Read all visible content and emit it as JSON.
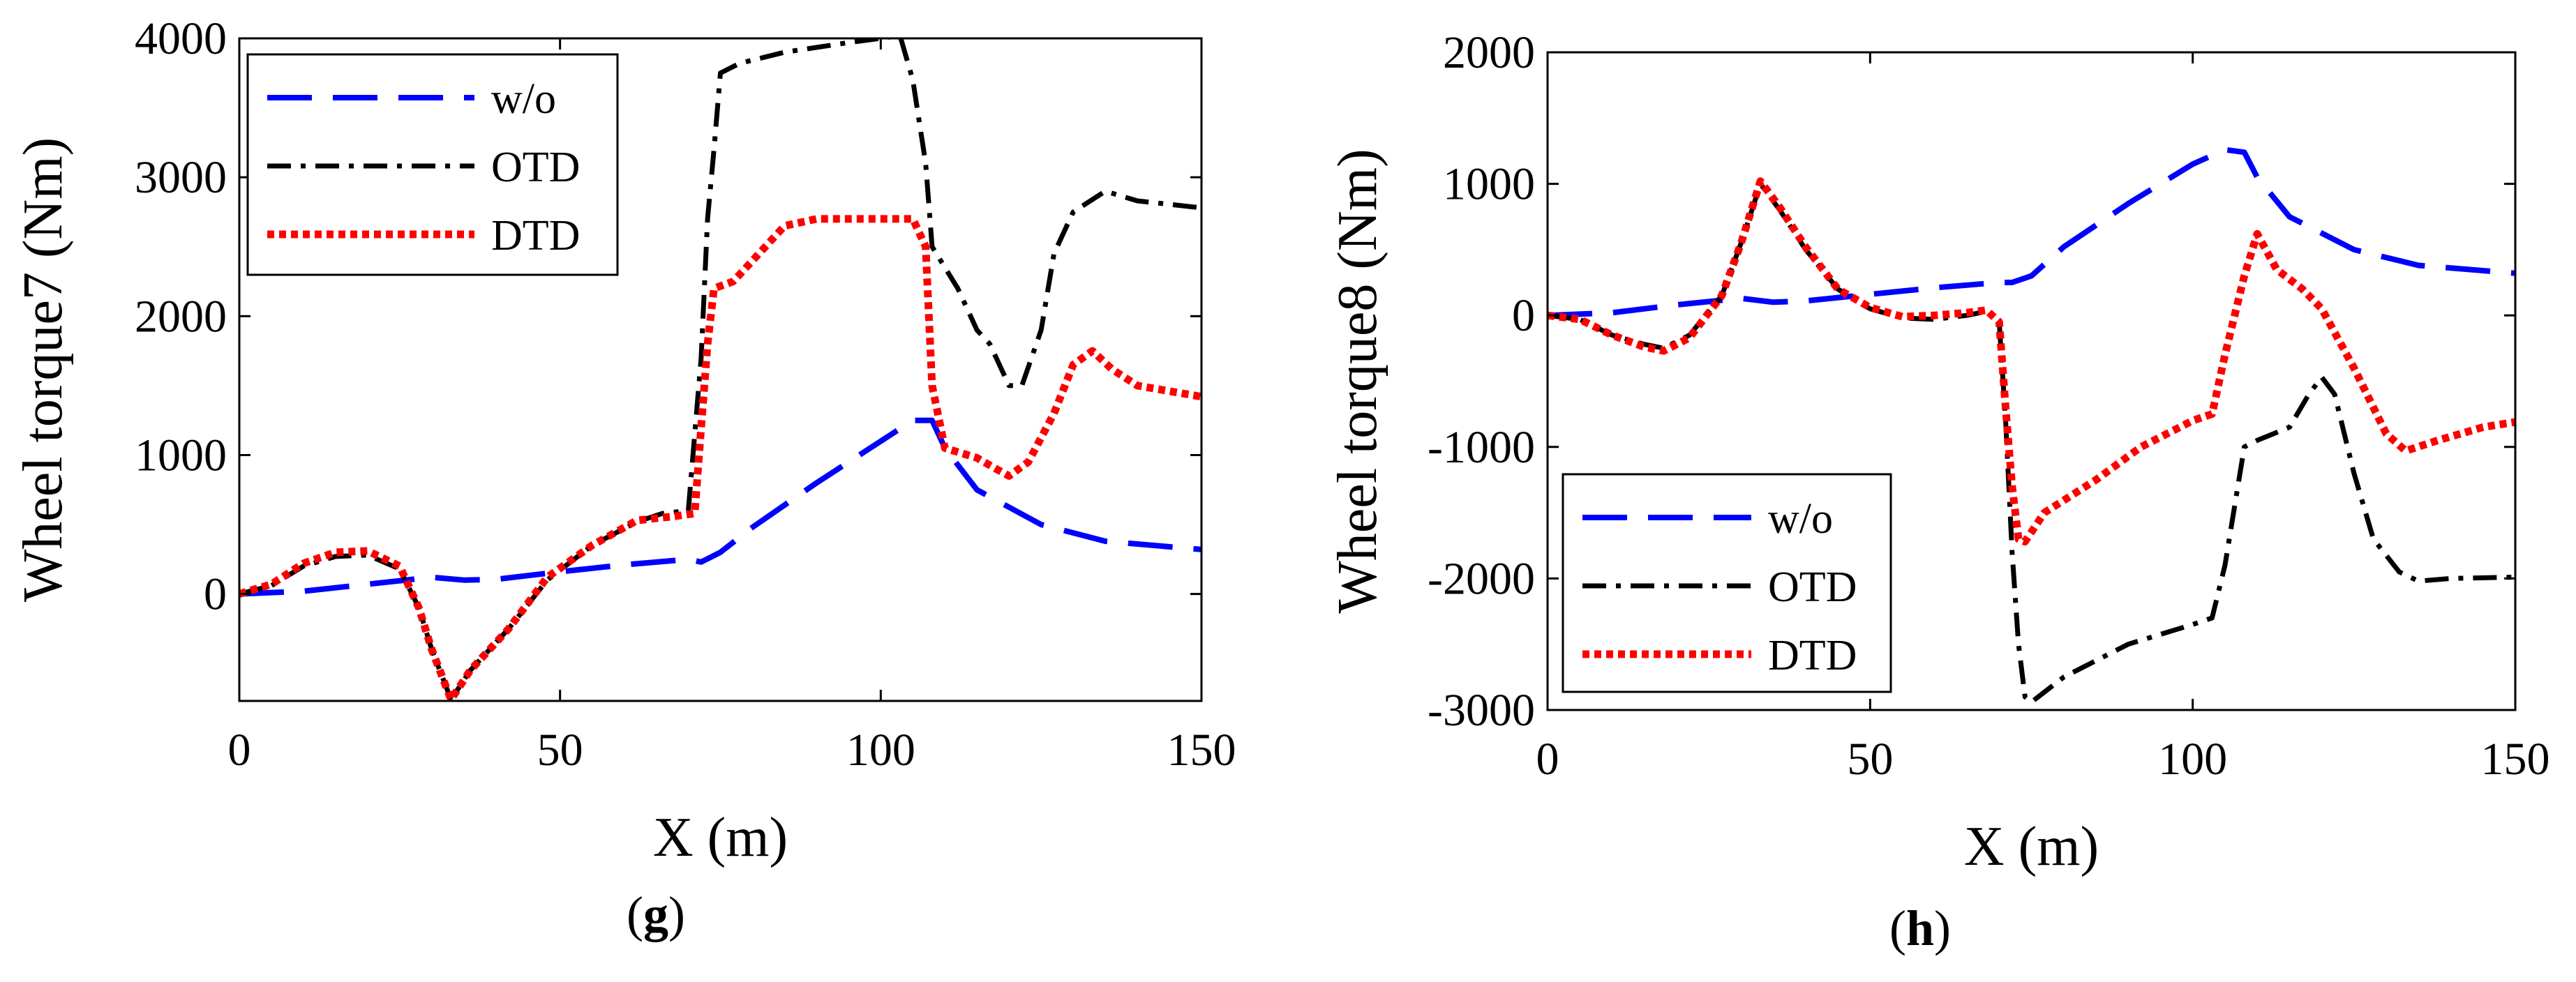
{
  "chart_data": [
    {
      "panel_label": "g",
      "type": "line",
      "xlabel": "X (m)",
      "ylabel": "Wheel torque7 (Nm)",
      "xlim": [
        0,
        150
      ],
      "ylim": [
        -770,
        4000
      ],
      "xticks": [
        0,
        50,
        100,
        150
      ],
      "yticks": [
        0,
        1000,
        2000,
        3000,
        4000
      ],
      "legend_position": "top-left",
      "series": [
        {
          "name": "w/o",
          "color": "#0000ff",
          "style": "dashed",
          "points": [
            [
              0,
              0
            ],
            [
              10,
              20
            ],
            [
              20,
              70
            ],
            [
              30,
              120
            ],
            [
              35,
              100
            ],
            [
              40,
              105
            ],
            [
              50,
              160
            ],
            [
              60,
              210
            ],
            [
              70,
              250
            ],
            [
              72,
              230
            ],
            [
              75,
              300
            ],
            [
              80,
              480
            ],
            [
              90,
              800
            ],
            [
              100,
              1100
            ],
            [
              105,
              1250
            ],
            [
              108,
              1250
            ],
            [
              110,
              1050
            ],
            [
              115,
              750
            ],
            [
              125,
              500
            ],
            [
              135,
              380
            ],
            [
              150,
              320
            ]
          ]
        },
        {
          "name": "OTD",
          "color": "#000000",
          "style": "dashdot",
          "points": [
            [
              0,
              0
            ],
            [
              5,
              60
            ],
            [
              10,
              200
            ],
            [
              15,
              270
            ],
            [
              20,
              280
            ],
            [
              25,
              180
            ],
            [
              28,
              -100
            ],
            [
              30,
              -400
            ],
            [
              33,
              -760
            ],
            [
              36,
              -550
            ],
            [
              42,
              -250
            ],
            [
              48,
              100
            ],
            [
              55,
              350
            ],
            [
              62,
              520
            ],
            [
              66,
              580
            ],
            [
              70,
              600
            ],
            [
              72,
              1700
            ],
            [
              73,
              2700
            ],
            [
              74,
              3200
            ],
            [
              75,
              3750
            ],
            [
              78,
              3820
            ],
            [
              85,
              3900
            ],
            [
              95,
              3970
            ],
            [
              100,
              4000
            ],
            [
              103,
              4020
            ],
            [
              105,
              3700
            ],
            [
              107,
              3100
            ],
            [
              108,
              2500
            ],
            [
              112,
              2200
            ],
            [
              115,
              1900
            ],
            [
              117,
              1800
            ],
            [
              120,
              1500
            ],
            [
              122,
              1500
            ],
            [
              125,
              1900
            ],
            [
              127,
              2450
            ],
            [
              130,
              2750
            ],
            [
              135,
              2900
            ],
            [
              140,
              2830
            ],
            [
              150,
              2780
            ]
          ]
        },
        {
          "name": "DTD",
          "color": "#ff0000",
          "style": "dotted",
          "points": [
            [
              0,
              0
            ],
            [
              5,
              70
            ],
            [
              10,
              220
            ],
            [
              15,
              300
            ],
            [
              20,
              310
            ],
            [
              25,
              200
            ],
            [
              28,
              -100
            ],
            [
              30,
              -400
            ],
            [
              33,
              -760
            ],
            [
              36,
              -550
            ],
            [
              42,
              -250
            ],
            [
              48,
              120
            ],
            [
              55,
              350
            ],
            [
              62,
              530
            ],
            [
              68,
              560
            ],
            [
              71,
              580
            ],
            [
              72,
              1200
            ],
            [
              73,
              1800
            ],
            [
              74,
              2200
            ],
            [
              77,
              2250
            ],
            [
              80,
              2400
            ],
            [
              85,
              2650
            ],
            [
              90,
              2700
            ],
            [
              105,
              2700
            ],
            [
              107,
              2500
            ],
            [
              108,
              1500
            ],
            [
              110,
              1050
            ],
            [
              115,
              980
            ],
            [
              118,
              900
            ],
            [
              120,
              850
            ],
            [
              123,
              950
            ],
            [
              127,
              1300
            ],
            [
              130,
              1650
            ],
            [
              133,
              1750
            ],
            [
              136,
              1620
            ],
            [
              140,
              1500
            ],
            [
              150,
              1420
            ]
          ]
        }
      ]
    },
    {
      "panel_label": "h",
      "type": "line",
      "xlabel": "X (m)",
      "ylabel": "Wheel torque8 (Nm)",
      "xlim": [
        0,
        150
      ],
      "ylim": [
        -3000,
        2000
      ],
      "xticks": [
        0,
        50,
        100,
        150
      ],
      "yticks": [
        -3000,
        -2000,
        -1000,
        0,
        1000,
        2000
      ],
      "legend_position": "bottom-left",
      "series": [
        {
          "name": "w/o",
          "color": "#0000ff",
          "style": "dashed",
          "points": [
            [
              0,
              0
            ],
            [
              10,
              20
            ],
            [
              20,
              80
            ],
            [
              30,
              130
            ],
            [
              35,
              100
            ],
            [
              40,
              110
            ],
            [
              50,
              160
            ],
            [
              60,
              210
            ],
            [
              70,
              250
            ],
            [
              72,
              250
            ],
            [
              75,
              300
            ],
            [
              80,
              520
            ],
            [
              90,
              850
            ],
            [
              100,
              1150
            ],
            [
              105,
              1260
            ],
            [
              108,
              1240
            ],
            [
              110,
              1050
            ],
            [
              115,
              750
            ],
            [
              125,
              500
            ],
            [
              135,
              380
            ],
            [
              150,
              320
            ]
          ]
        },
        {
          "name": "OTD",
          "color": "#000000",
          "style": "dashdot",
          "points": [
            [
              0,
              0
            ],
            [
              5,
              -30
            ],
            [
              10,
              -150
            ],
            [
              15,
              -220
            ],
            [
              18,
              -250
            ],
            [
              22,
              -150
            ],
            [
              27,
              150
            ],
            [
              30,
              550
            ],
            [
              33,
              1000
            ],
            [
              36,
              800
            ],
            [
              40,
              500
            ],
            [
              45,
              200
            ],
            [
              50,
              50
            ],
            [
              55,
              -20
            ],
            [
              60,
              -30
            ],
            [
              65,
              0
            ],
            [
              68,
              30
            ],
            [
              70,
              -50
            ],
            [
              71,
              -800
            ],
            [
              72,
              -1800
            ],
            [
              73,
              -2500
            ],
            [
              74,
              -2900
            ],
            [
              75,
              -2940
            ],
            [
              80,
              -2750
            ],
            [
              90,
              -2500
            ],
            [
              100,
              -2350
            ],
            [
              103,
              -2300
            ],
            [
              105,
              -1900
            ],
            [
              108,
              -1000
            ],
            [
              110,
              -950
            ],
            [
              115,
              -850
            ],
            [
              118,
              -600
            ],
            [
              120,
              -470
            ],
            [
              122,
              -600
            ],
            [
              125,
              -1200
            ],
            [
              128,
              -1700
            ],
            [
              132,
              -1950
            ],
            [
              135,
              -2020
            ],
            [
              140,
              -2000
            ],
            [
              150,
              -1990
            ]
          ]
        },
        {
          "name": "DTD",
          "color": "#ff0000",
          "style": "dotted",
          "points": [
            [
              0,
              0
            ],
            [
              5,
              -30
            ],
            [
              10,
              -150
            ],
            [
              15,
              -240
            ],
            [
              18,
              -270
            ],
            [
              22,
              -170
            ],
            [
              27,
              150
            ],
            [
              30,
              550
            ],
            [
              33,
              1020
            ],
            [
              36,
              820
            ],
            [
              40,
              520
            ],
            [
              45,
              200
            ],
            [
              50,
              60
            ],
            [
              55,
              -10
            ],
            [
              60,
              0
            ],
            [
              65,
              20
            ],
            [
              68,
              40
            ],
            [
              70,
              -50
            ],
            [
              71,
              -700
            ],
            [
              72,
              -1300
            ],
            [
              73,
              -1700
            ],
            [
              74,
              -1720
            ],
            [
              77,
              -1500
            ],
            [
              85,
              -1250
            ],
            [
              92,
              -1000
            ],
            [
              100,
              -800
            ],
            [
              103,
              -750
            ],
            [
              105,
              -300
            ],
            [
              108,
              300
            ],
            [
              110,
              620
            ],
            [
              113,
              350
            ],
            [
              117,
              200
            ],
            [
              120,
              50
            ],
            [
              125,
              -400
            ],
            [
              130,
              -900
            ],
            [
              133,
              -1030
            ],
            [
              138,
              -950
            ],
            [
              145,
              -850
            ],
            [
              150,
              -810
            ]
          ]
        }
      ]
    }
  ]
}
